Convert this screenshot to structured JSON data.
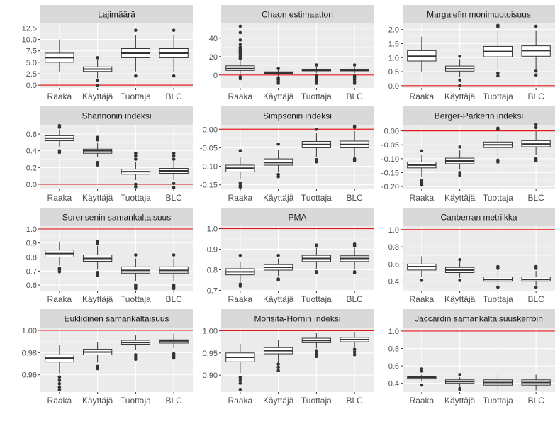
{
  "colors": {
    "panel_bg": "#ebebeb",
    "strip_bg": "#d9d9d9",
    "grid_major": "#ffffff",
    "reference_line": "#e31a1c",
    "box_fill": "#ffffff",
    "box_line": "#333333",
    "outlier": "#333333"
  },
  "chart_data": [
    {
      "type": "boxplot",
      "title": "Lajimäärä",
      "categories": [
        "Raaka",
        "Käyttäjä",
        "Tuottaja",
        "BLC"
      ],
      "yticks": [
        0.0,
        2.5,
        5.0,
        7.5,
        10.0,
        12.5
      ],
      "ytick_labels": [
        "0.0",
        "2.5",
        "5.0",
        "7.5",
        "10.0",
        "12.5"
      ],
      "ylim": [
        -0.6,
        13.5
      ],
      "reference_line": 0,
      "boxes": [
        {
          "q1": 5.0,
          "median": 6.0,
          "q3": 7.0,
          "whisker_low": 3.0,
          "whisker_high": 10.0,
          "outliers": []
        },
        {
          "q1": 3.0,
          "median": 3.5,
          "q3": 4.0,
          "whisker_low": 1.5,
          "whisker_high": 5.5,
          "outliers": [
            6.0,
            1.0,
            0.0
          ]
        },
        {
          "q1": 6.0,
          "median": 7.0,
          "q3": 8.0,
          "whisker_low": 3.0,
          "whisker_high": 11.0,
          "outliers": [
            12.0,
            2.0
          ]
        },
        {
          "q1": 6.0,
          "median": 7.0,
          "q3": 8.0,
          "whisker_low": 3.0,
          "whisker_high": 11.0,
          "outliers": [
            12.0,
            2.0
          ]
        }
      ]
    },
    {
      "type": "boxplot",
      "title": "Chaon estimaattori",
      "categories": [
        "Raaka",
        "Käyttäjä",
        "Tuottaja",
        "BLC"
      ],
      "yticks": [
        0,
        20,
        40
      ],
      "ytick_labels": [
        "0",
        "20",
        "40"
      ],
      "ylim": [
        -14,
        56
      ],
      "reference_line": 0,
      "boxes": [
        {
          "q1": 5.0,
          "median": 7.0,
          "q3": 10.0,
          "whisker_low": 0.0,
          "whisker_high": 17.0,
          "outliers": [
            18,
            20,
            22,
            24,
            26,
            28,
            30,
            33,
            38,
            46,
            53,
            -2,
            -4
          ]
        },
        {
          "q1": 1.5,
          "median": 2.5,
          "q3": 3.5,
          "whisker_low": -1.0,
          "whisker_high": 6.0,
          "outliers": [
            7.0,
            -3,
            -5,
            -7,
            -9
          ]
        },
        {
          "q1": 4.5,
          "median": 5.3,
          "q3": 6.3,
          "whisker_low": 2.0,
          "whisker_high": 9.0,
          "outliers": [
            11.0,
            -1,
            -3,
            -5,
            -7,
            -9
          ]
        },
        {
          "q1": 4.5,
          "median": 5.3,
          "q3": 6.3,
          "whisker_low": 2.0,
          "whisker_high": 9.0,
          "outliers": [
            11.0,
            -1,
            -3,
            -5,
            -7,
            -9
          ]
        }
      ]
    },
    {
      "type": "boxplot",
      "title": "Margalefin monimuotoisuus",
      "categories": [
        "Raaka",
        "Käyttäjä",
        "Tuottaja",
        "BLC"
      ],
      "yticks": [
        0.0,
        0.5,
        1.0,
        1.5,
        2.0
      ],
      "ytick_labels": [
        "0.0",
        "0.5",
        "1.0",
        "1.5",
        "2.0"
      ],
      "ylim": [
        -0.08,
        2.22
      ],
      "reference_line": 0,
      "boxes": [
        {
          "q1": 0.88,
          "median": 1.05,
          "q3": 1.25,
          "whisker_low": 0.5,
          "whisker_high": 1.75,
          "outliers": []
        },
        {
          "q1": 0.52,
          "median": 0.6,
          "q3": 0.7,
          "whisker_low": 0.3,
          "whisker_high": 0.95,
          "outliers": [
            1.05,
            0.2,
            0.0
          ]
        },
        {
          "q1": 1.03,
          "median": 1.22,
          "q3": 1.4,
          "whisker_low": 0.6,
          "whisker_high": 1.95,
          "outliers": [
            2.1,
            2.15,
            0.45,
            0.35
          ]
        },
        {
          "q1": 1.05,
          "median": 1.25,
          "q3": 1.42,
          "whisker_low": 0.6,
          "whisker_high": 1.95,
          "outliers": [
            2.12,
            0.52,
            0.38
          ]
        }
      ]
    },
    {
      "type": "boxplot",
      "title": "Shannonin indeksi",
      "categories": [
        "Raaka",
        "Käyttäjä",
        "Tuottaja",
        "BLC"
      ],
      "yticks": [
        0.0,
        0.2,
        0.4,
        0.6
      ],
      "ytick_labels": [
        "0.0",
        "0.2",
        "0.4",
        "0.6"
      ],
      "ylim": [
        -0.06,
        0.71
      ],
      "reference_line": 0,
      "boxes": [
        {
          "q1": 0.52,
          "median": 0.55,
          "q3": 0.58,
          "whisker_low": 0.45,
          "whisker_high": 0.65,
          "outliers": [
            0.68,
            0.7,
            0.4,
            0.38
          ]
        },
        {
          "q1": 0.37,
          "median": 0.4,
          "q3": 0.42,
          "whisker_low": 0.32,
          "whisker_high": 0.5,
          "outliers": [
            0.53,
            0.56,
            0.26,
            0.23
          ]
        },
        {
          "q1": 0.12,
          "median": 0.15,
          "q3": 0.18,
          "whisker_low": 0.05,
          "whisker_high": 0.27,
          "outliers": [
            0.3,
            0.34,
            0.37,
            0.0,
            -0.03
          ]
        },
        {
          "q1": 0.13,
          "median": 0.16,
          "q3": 0.19,
          "whisker_low": 0.05,
          "whisker_high": 0.28,
          "outliers": [
            0.3,
            0.34,
            0.37,
            0.01,
            -0.04
          ]
        }
      ]
    },
    {
      "type": "boxplot",
      "title": "Simpsonin indeksi",
      "categories": [
        "Raaka",
        "Käyttäjä",
        "Tuottaja",
        "BLC"
      ],
      "yticks": [
        0.0,
        -0.05,
        -0.1,
        -0.15
      ],
      "ytick_labels": [
        "0.00",
        "-0.05",
        "-0.10",
        "-0.15"
      ],
      "ylim": [
        -0.162,
        0.012
      ],
      "reference_line": 0,
      "boxes": [
        {
          "q1": -0.115,
          "median": -0.105,
          "q3": -0.097,
          "whisker_low": -0.135,
          "whisker_high": -0.075,
          "outliers": [
            -0.058,
            -0.145,
            -0.152,
            -0.156
          ]
        },
        {
          "q1": -0.097,
          "median": -0.09,
          "q3": -0.08,
          "whisker_low": -0.115,
          "whisker_high": -0.055,
          "outliers": [
            -0.04,
            -0.122,
            -0.128
          ]
        },
        {
          "q1": -0.05,
          "median": -0.041,
          "q3": -0.033,
          "whisker_low": -0.075,
          "whisker_high": -0.01,
          "outliers": [
            0.0,
            -0.082,
            -0.088
          ]
        },
        {
          "q1": -0.05,
          "median": -0.041,
          "q3": -0.032,
          "whisker_low": -0.075,
          "whisker_high": -0.005,
          "outliers": [
            0.005,
            0.008,
            -0.08,
            -0.085
          ]
        }
      ]
    },
    {
      "type": "boxplot",
      "title": "Berger-Parkerin indeksi",
      "categories": [
        "Raaka",
        "Käyttäjä",
        "Tuottaja",
        "BLC"
      ],
      "yticks": [
        0.0,
        -0.05,
        -0.1,
        -0.15,
        -0.2
      ],
      "ytick_labels": [
        "0.00",
        "-0.05",
        "-0.10",
        "-0.15",
        "-0.20"
      ],
      "ylim": [
        -0.21,
        0.022
      ],
      "reference_line": 0,
      "boxes": [
        {
          "q1": -0.133,
          "median": -0.123,
          "q3": -0.112,
          "whisker_low": -0.165,
          "whisker_high": -0.085,
          "outliers": [
            -0.072,
            -0.178,
            -0.187,
            -0.195
          ]
        },
        {
          "q1": -0.118,
          "median": -0.108,
          "q3": -0.098,
          "whisker_low": -0.14,
          "whisker_high": -0.07,
          "outliers": [
            -0.058,
            -0.15,
            -0.16
          ]
        },
        {
          "q1": -0.06,
          "median": -0.05,
          "q3": -0.04,
          "whisker_low": -0.09,
          "whisker_high": -0.01,
          "outliers": [
            0.005,
            0.01,
            -0.105,
            -0.112
          ]
        },
        {
          "q1": -0.057,
          "median": -0.047,
          "q3": -0.035,
          "whisker_low": -0.085,
          "whisker_high": -0.002,
          "outliers": [
            0.012,
            0.022,
            -0.1,
            -0.108
          ]
        }
      ]
    },
    {
      "type": "boxplot",
      "title": "Sorensenin samankaltaisuus",
      "categories": [
        "Raaka",
        "Käyttäjä",
        "Tuottaja",
        "BLC"
      ],
      "yticks": [
        0.6,
        0.7,
        0.8,
        0.9,
        1.0
      ],
      "ytick_labels": [
        "0.6",
        "0.7",
        "0.8",
        "0.9",
        "1.0"
      ],
      "ylim": [
        0.56,
        1.02
      ],
      "reference_line": 1.0,
      "boxes": [
        {
          "q1": 0.8,
          "median": 0.825,
          "q3": 0.85,
          "whisker_low": 0.74,
          "whisker_high": 0.91,
          "outliers": [
            0.72,
            0.71,
            0.695
          ]
        },
        {
          "q1": 0.77,
          "median": 0.79,
          "q3": 0.815,
          "whisker_low": 0.71,
          "whisker_high": 0.88,
          "outliers": [
            0.895,
            0.91,
            0.69,
            0.67
          ]
        },
        {
          "q1": 0.685,
          "median": 0.705,
          "q3": 0.73,
          "whisker_low": 0.63,
          "whisker_high": 0.79,
          "outliers": [
            0.815,
            0.6,
            0.585,
            0.575
          ]
        },
        {
          "q1": 0.685,
          "median": 0.705,
          "q3": 0.73,
          "whisker_low": 0.63,
          "whisker_high": 0.79,
          "outliers": [
            0.815,
            0.6,
            0.585,
            0.575
          ]
        }
      ]
    },
    {
      "type": "boxplot",
      "title": "PMA",
      "categories": [
        "Raaka",
        "Käyttäjä",
        "Tuottaja",
        "BLC"
      ],
      "yticks": [
        0.7,
        0.8,
        0.9,
        1.0
      ],
      "ytick_labels": [
        "0.7",
        "0.8",
        "0.9",
        "1.0"
      ],
      "ylim": [
        0.698,
        1.012
      ],
      "reference_line": 1.0,
      "boxes": [
        {
          "q1": 0.775,
          "median": 0.79,
          "q3": 0.805,
          "whisker_low": 0.74,
          "whisker_high": 0.84,
          "outliers": [
            0.87,
            0.73,
            0.72
          ]
        },
        {
          "q1": 0.798,
          "median": 0.812,
          "q3": 0.825,
          "whisker_low": 0.77,
          "whisker_high": 0.855,
          "outliers": [
            0.87,
            0.755,
            0.75
          ]
        },
        {
          "q1": 0.84,
          "median": 0.855,
          "q3": 0.87,
          "whisker_low": 0.805,
          "whisker_high": 0.905,
          "outliers": [
            0.92,
            0.915,
            0.79,
            0.785
          ]
        },
        {
          "q1": 0.84,
          "median": 0.855,
          "q3": 0.868,
          "whisker_low": 0.805,
          "whisker_high": 0.905,
          "outliers": [
            0.925,
            0.915,
            0.79,
            0.785
          ]
        }
      ]
    },
    {
      "type": "boxplot",
      "title": "Canberran metriikka",
      "categories": [
        "Raaka",
        "Käyttäjä",
        "Tuottaja",
        "BLC"
      ],
      "yticks": [
        0.4,
        0.6,
        0.8,
        1.0
      ],
      "ytick_labels": [
        "0.4",
        "0.6",
        "0.8",
        "1.0"
      ],
      "ylim": [
        0.29,
        1.04
      ],
      "reference_line": 1.0,
      "boxes": [
        {
          "q1": 0.53,
          "median": 0.57,
          "q3": 0.6,
          "whisker_low": 0.45,
          "whisker_high": 0.69,
          "outliers": [
            0.41
          ]
        },
        {
          "q1": 0.5,
          "median": 0.53,
          "q3": 0.56,
          "whisker_low": 0.44,
          "whisker_high": 0.62,
          "outliers": [
            0.65,
            0.41
          ]
        },
        {
          "q1": 0.4,
          "median": 0.42,
          "q3": 0.45,
          "whisker_low": 0.35,
          "whisker_high": 0.52,
          "outliers": [
            0.55,
            0.57,
            0.33
          ]
        },
        {
          "q1": 0.4,
          "median": 0.42,
          "q3": 0.45,
          "whisker_low": 0.35,
          "whisker_high": 0.52,
          "outliers": [
            0.55,
            0.57,
            0.33
          ]
        }
      ]
    },
    {
      "type": "boxplot",
      "title": "Euklidinen samankaltaisuus",
      "categories": [
        "Raaka",
        "Käyttäjä",
        "Tuottaja",
        "BLC"
      ],
      "yticks": [
        0.96,
        0.98,
        1.0
      ],
      "ytick_labels": [
        "0.96",
        "0.98",
        "1.00"
      ],
      "ylim": [
        0.9445,
        1.0025
      ],
      "reference_line": 1.0,
      "boxes": [
        {
          "q1": 0.9715,
          "median": 0.975,
          "q3": 0.978,
          "whisker_low": 0.9615,
          "whisker_high": 0.987,
          "outliers": [
            0.958,
            0.955,
            0.952,
            0.949,
            0.9465
          ]
        },
        {
          "q1": 0.978,
          "median": 0.9805,
          "q3": 0.983,
          "whisker_low": 0.971,
          "whisker_high": 0.9895,
          "outliers": [
            0.9675,
            0.9655
          ]
        },
        {
          "q1": 0.9875,
          "median": 0.989,
          "q3": 0.991,
          "whisker_low": 0.9825,
          "whisker_high": 0.996,
          "outliers": [
            0.978,
            0.976,
            0.974
          ]
        },
        {
          "q1": 0.9885,
          "median": 0.9905,
          "q3": 0.9915,
          "whisker_low": 0.984,
          "whisker_high": 0.997,
          "outliers": [
            0.979,
            0.977,
            0.975
          ]
        }
      ]
    },
    {
      "type": "boxplot",
      "title": "Morisita-Hornin indeksi",
      "categories": [
        "Raaka",
        "Käyttäjä",
        "Tuottaja",
        "BLC"
      ],
      "yticks": [
        0.9,
        0.95,
        1.0
      ],
      "ytick_labels": [
        "0.90",
        "0.95",
        "1.00"
      ],
      "ylim": [
        0.862,
        1.007
      ],
      "reference_line": 1.0,
      "boxes": [
        {
          "q1": 0.93,
          "median": 0.94,
          "q3": 0.95,
          "whisker_low": 0.905,
          "whisker_high": 0.97,
          "outliers": [
            0.895,
            0.888,
            0.882,
            0.868
          ]
        },
        {
          "q1": 0.948,
          "median": 0.955,
          "q3": 0.962,
          "whisker_low": 0.93,
          "whisker_high": 0.98,
          "outliers": [
            0.925,
            0.918,
            0.91
          ]
        },
        {
          "q1": 0.973,
          "median": 0.978,
          "q3": 0.983,
          "whisker_low": 0.96,
          "whisker_high": 0.995,
          "outliers": [
            0.955,
            0.948,
            0.942
          ]
        },
        {
          "q1": 0.975,
          "median": 0.98,
          "q3": 0.985,
          "whisker_low": 0.962,
          "whisker_high": 0.997,
          "outliers": [
            0.958,
            0.952,
            0.946
          ]
        }
      ]
    },
    {
      "type": "boxplot",
      "title": "Jaccardin samankaltaisuuskerroin",
      "categories": [
        "Raaka",
        "Käyttäjä",
        "Tuottaja",
        "BLC"
      ],
      "yticks": [
        0.4,
        0.6,
        0.8,
        1.0
      ],
      "ytick_labels": [
        "0.4",
        "0.6",
        "0.8",
        "1.0"
      ],
      "ylim": [
        0.3,
        1.04
      ],
      "reference_line": 1.0,
      "boxes": [
        {
          "q1": 0.45,
          "median": 0.465,
          "q3": 0.475,
          "whisker_low": 0.42,
          "whisker_high": 0.5,
          "outliers": [
            0.54,
            0.565,
            0.38
          ]
        },
        {
          "q1": 0.4,
          "median": 0.42,
          "q3": 0.44,
          "whisker_low": 0.36,
          "whisker_high": 0.47,
          "outliers": [
            0.5,
            0.34,
            0.33
          ]
        },
        {
          "q1": 0.38,
          "median": 0.41,
          "q3": 0.44,
          "whisker_low": 0.32,
          "whisker_high": 0.5,
          "outliers": []
        },
        {
          "q1": 0.38,
          "median": 0.41,
          "q3": 0.44,
          "whisker_low": 0.32,
          "whisker_high": 0.5,
          "outliers": []
        }
      ]
    }
  ]
}
